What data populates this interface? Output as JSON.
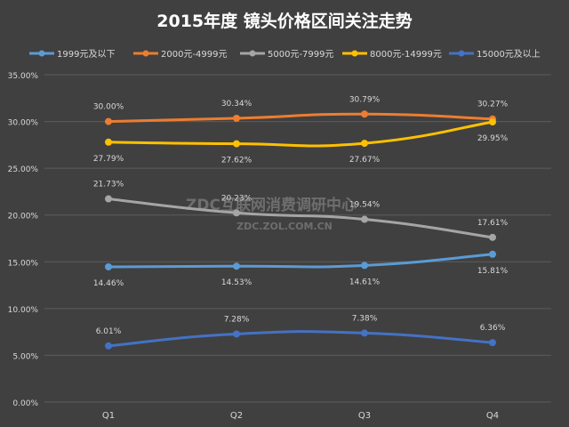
{
  "chart_data": {
    "type": "line",
    "title": "2015年度 镜头价格区间关注走势",
    "categories": [
      "Q1",
      "Q2",
      "Q3",
      "Q4"
    ],
    "ylim": [
      0,
      35
    ],
    "yticks": [
      0,
      5,
      10,
      15,
      20,
      25,
      30,
      35
    ],
    "ytick_labels": [
      "0.00%",
      "5.00%",
      "10.00%",
      "15.00%",
      "20.00%",
      "25.00%",
      "30.00%",
      "35.00%"
    ],
    "legend_position": "top",
    "grid": true,
    "series": [
      {
        "name": "1999元及以下",
        "color": "#5B9BD5",
        "values": [
          14.46,
          14.53,
          14.61,
          15.81
        ],
        "labels": [
          "14.46%",
          "14.53%",
          "14.61%",
          "15.81%"
        ],
        "label_pos": [
          "below",
          "below",
          "below",
          "below"
        ]
      },
      {
        "name": "2000元-4999元",
        "color": "#ED7D31",
        "values": [
          30.0,
          30.34,
          30.79,
          30.27
        ],
        "labels": [
          "30.00%",
          "30.34%",
          "30.79%",
          "30.27%"
        ],
        "label_pos": [
          "above",
          "above",
          "above",
          "above"
        ]
      },
      {
        "name": "5000元-7999元",
        "color": "#A5A5A5",
        "values": [
          21.73,
          20.23,
          19.54,
          17.61
        ],
        "labels": [
          "21.73%",
          "20.23%",
          "19.54%",
          "17.61%"
        ],
        "label_pos": [
          "above",
          "above",
          "above",
          "above"
        ]
      },
      {
        "name": "8000元-14999元",
        "color": "#FFC000",
        "values": [
          27.79,
          27.62,
          27.67,
          29.95
        ],
        "labels": [
          "27.79%",
          "27.62%",
          "27.67%",
          "29.95%"
        ],
        "label_pos": [
          "below",
          "below",
          "below",
          "below"
        ]
      },
      {
        "name": "15000元及以上",
        "color": "#4472C4",
        "values": [
          6.01,
          7.28,
          7.38,
          6.36
        ],
        "labels": [
          "6.01%",
          "7.28%",
          "7.38%",
          "6.36%"
        ],
        "label_pos": [
          "above",
          "above",
          "above",
          "above"
        ]
      }
    ]
  },
  "watermark": {
    "line1": "ZDC互联网消费调研中心",
    "line2": "ZDC.ZOL.COM.CN"
  }
}
